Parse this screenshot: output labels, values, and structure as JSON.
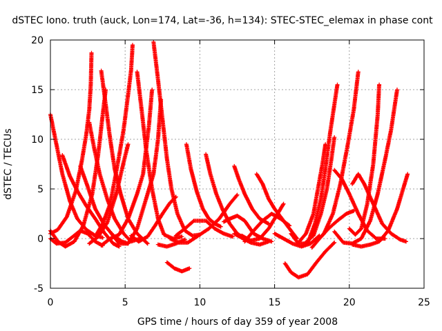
{
  "chart_data": {
    "type": "scatter",
    "title": "dSTEC Iono. truth (auck, Lon=174, Lat=-36, h=134): STEC-STEC_elemax in phase cont",
    "xlabel": "GPS time / hours of day 359 of year 2008",
    "ylabel": "dSTEC  / TECUs",
    "xlim": [
      0,
      25
    ],
    "ylim": [
      -5,
      20
    ],
    "xticks": [
      0,
      5,
      10,
      15,
      20,
      25
    ],
    "yticks": [
      -5,
      0,
      5,
      10,
      15,
      20
    ],
    "grid": true,
    "marker": "plus",
    "color": "#ff0000",
    "arcs": [
      {
        "points": [
          [
            0.0,
            12.5
          ],
          [
            0.4,
            9.5
          ],
          [
            0.8,
            6.5
          ],
          [
            1.3,
            3.8
          ],
          [
            1.8,
            2.0
          ],
          [
            2.4,
            0.9
          ],
          [
            3.0,
            0.3
          ],
          [
            3.5,
            0.1
          ]
        ]
      },
      {
        "points": [
          [
            0.0,
            0.5
          ],
          [
            0.5,
            0.9
          ],
          [
            1.1,
            2.2
          ],
          [
            1.7,
            4.8
          ],
          [
            2.1,
            7.8
          ],
          [
            2.4,
            10.5
          ],
          [
            2.6,
            13.0
          ],
          [
            2.7,
            15.5
          ],
          [
            2.75,
            18.7
          ]
        ]
      },
      {
        "points": [
          [
            0.0,
            0.8
          ],
          [
            0.5,
            -0.3
          ],
          [
            1.0,
            -0.8
          ],
          [
            1.6,
            -0.3
          ],
          [
            2.2,
            1.3
          ],
          [
            2.8,
            4.5
          ],
          [
            3.2,
            8.5
          ],
          [
            3.5,
            12.5
          ],
          [
            3.7,
            15.0
          ]
        ]
      },
      {
        "points": [
          [
            0.0,
            0.0
          ],
          [
            0.4,
            -0.5
          ],
          [
            1.0,
            -0.4
          ],
          [
            1.5,
            0.2
          ],
          [
            2.0,
            0.8
          ],
          [
            2.5,
            0.5
          ],
          [
            3.0,
            -0.3
          ],
          [
            3.5,
            -0.7
          ]
        ]
      },
      {
        "points": [
          [
            0.8,
            8.4
          ],
          [
            1.3,
            6.3
          ],
          [
            1.8,
            4.8
          ],
          [
            2.4,
            3.3
          ],
          [
            3.0,
            2.0
          ],
          [
            3.6,
            0.6
          ],
          [
            4.2,
            -0.5
          ],
          [
            4.6,
            -0.8
          ]
        ]
      },
      {
        "points": [
          [
            2.6,
            11.7
          ],
          [
            2.9,
            9.3
          ],
          [
            3.3,
            6.5
          ],
          [
            3.8,
            4.0
          ],
          [
            4.3,
            2.0
          ],
          [
            4.9,
            0.5
          ],
          [
            5.4,
            -0.3
          ],
          [
            6.0,
            0.0
          ]
        ]
      },
      {
        "points": [
          [
            3.4,
            16.9
          ],
          [
            3.7,
            13.5
          ],
          [
            4.0,
            10.0
          ],
          [
            4.3,
            7.0
          ],
          [
            4.7,
            4.5
          ],
          [
            5.2,
            2.0
          ],
          [
            5.8,
            0.5
          ],
          [
            6.5,
            -0.5
          ]
        ]
      },
      {
        "points": [
          [
            2.0,
            7.3
          ],
          [
            2.5,
            5.2
          ],
          [
            3.0,
            3.0
          ],
          [
            3.6,
            1.4
          ],
          [
            4.2,
            0.3
          ],
          [
            4.8,
            -0.3
          ],
          [
            5.2,
            -0.5
          ]
        ]
      },
      {
        "points": [
          [
            3.0,
            0.2
          ],
          [
            3.5,
            1.5
          ],
          [
            4.0,
            3.5
          ],
          [
            4.5,
            7.5
          ],
          [
            4.9,
            11.0
          ],
          [
            5.2,
            14.5
          ],
          [
            5.4,
            17.0
          ],
          [
            5.5,
            19.5
          ]
        ]
      },
      {
        "points": [
          [
            2.6,
            -0.5
          ],
          [
            3.2,
            0.2
          ],
          [
            3.8,
            1.6
          ],
          [
            4.4,
            4.5
          ],
          [
            4.9,
            7.7
          ],
          [
            5.2,
            9.5
          ]
        ]
      },
      {
        "points": [
          [
            3.4,
            -0.7
          ],
          [
            4.0,
            0.0
          ],
          [
            4.6,
            0.4
          ],
          [
            5.2,
            2.0
          ],
          [
            5.8,
            4.5
          ],
          [
            6.2,
            6.5
          ],
          [
            6.6,
            11.5
          ],
          [
            6.8,
            15.0
          ]
        ]
      },
      {
        "points": [
          [
            4.1,
            0.5
          ],
          [
            4.6,
            -0.5
          ],
          [
            5.2,
            -0.5
          ],
          [
            5.8,
            1.0
          ],
          [
            6.3,
            3.5
          ],
          [
            6.9,
            6.5
          ],
          [
            7.2,
            10.0
          ],
          [
            7.4,
            14.0
          ]
        ]
      },
      {
        "points": [
          [
            5.8,
            16.8
          ],
          [
            6.1,
            13.0
          ],
          [
            6.4,
            9.0
          ],
          [
            6.8,
            5.0
          ],
          [
            7.2,
            2.0
          ],
          [
            7.6,
            0.4
          ],
          [
            8.2,
            0.0
          ],
          [
            8.8,
            0.2
          ]
        ]
      },
      {
        "points": [
          [
            6.9,
            19.8
          ],
          [
            7.2,
            16.0
          ],
          [
            7.5,
            12.0
          ],
          [
            7.8,
            8.0
          ],
          [
            8.1,
            5.0
          ],
          [
            8.5,
            2.5
          ],
          [
            9.0,
            0.8
          ],
          [
            9.5,
            0.3
          ],
          [
            10.0,
            0.4
          ]
        ]
      },
      {
        "points": [
          [
            5.4,
            0.3
          ],
          [
            5.9,
            -0.3
          ],
          [
            6.5,
            0.2
          ],
          [
            7.0,
            1.3
          ],
          [
            7.5,
            2.5
          ],
          [
            8.0,
            3.6
          ],
          [
            8.4,
            4.2
          ]
        ]
      },
      {
        "points": [
          [
            7.2,
            -0.6
          ],
          [
            7.8,
            -0.8
          ],
          [
            8.4,
            -0.5
          ],
          [
            9.0,
            -0.1
          ]
        ]
      },
      {
        "points": [
          [
            7.8,
            -2.4
          ],
          [
            8.3,
            -3.0
          ],
          [
            8.8,
            -3.3
          ],
          [
            9.3,
            -3.0
          ]
        ]
      },
      {
        "points": [
          [
            9.1,
            9.5
          ],
          [
            9.4,
            7.0
          ],
          [
            9.8,
            4.7
          ],
          [
            10.2,
            3.0
          ],
          [
            10.6,
            2.0
          ],
          [
            11.0,
            1.5
          ],
          [
            11.4,
            1.2
          ]
        ]
      },
      {
        "points": [
          [
            10.4,
            8.5
          ],
          [
            10.7,
            6.5
          ],
          [
            11.1,
            4.5
          ],
          [
            11.5,
            3.0
          ],
          [
            12.0,
            1.5
          ],
          [
            12.5,
            0.5
          ],
          [
            13.0,
            0.0
          ]
        ]
      },
      {
        "points": [
          [
            8.4,
            0.3
          ],
          [
            9.0,
            1.0
          ],
          [
            9.6,
            1.8
          ],
          [
            10.4,
            1.8
          ],
          [
            11.0,
            1.0
          ],
          [
            11.6,
            0.5
          ],
          [
            12.2,
            0.2
          ]
        ]
      },
      {
        "points": [
          [
            8.0,
            0.0
          ],
          [
            8.6,
            -0.4
          ],
          [
            9.2,
            -0.4
          ],
          [
            9.8,
            0.2
          ],
          [
            10.6,
            1.0
          ],
          [
            11.3,
            2.0
          ],
          [
            12.0,
            3.5
          ],
          [
            12.5,
            4.4
          ]
        ]
      },
      {
        "points": [
          [
            11.6,
            1.7
          ],
          [
            12.0,
            2.0
          ],
          [
            12.5,
            2.3
          ],
          [
            13.0,
            1.8
          ],
          [
            13.6,
            0.5
          ],
          [
            14.2,
            0.0
          ],
          [
            14.8,
            -0.3
          ]
        ]
      },
      {
        "points": [
          [
            12.3,
            0.5
          ],
          [
            12.9,
            0.0
          ],
          [
            13.4,
            -0.4
          ],
          [
            14.0,
            -0.6
          ],
          [
            14.6,
            -0.3
          ]
        ]
      },
      {
        "points": [
          [
            12.3,
            7.3
          ],
          [
            12.6,
            6.0
          ],
          [
            13.0,
            4.5
          ],
          [
            13.5,
            3.0
          ],
          [
            14.0,
            2.0
          ],
          [
            14.6,
            1.5
          ]
        ]
      },
      {
        "points": [
          [
            13.0,
            -0.3
          ],
          [
            13.6,
            0.8
          ],
          [
            14.2,
            1.8
          ],
          [
            14.8,
            2.5
          ],
          [
            15.4,
            2.0
          ],
          [
            16.0,
            1.3
          ]
        ]
      },
      {
        "points": [
          [
            13.8,
            6.5
          ],
          [
            14.2,
            5.5
          ],
          [
            14.6,
            4.0
          ],
          [
            15.0,
            3.0
          ],
          [
            15.5,
            2.0
          ],
          [
            16.0,
            1.0
          ],
          [
            16.5,
            0.0
          ]
        ]
      },
      {
        "points": [
          [
            12.8,
            0.3
          ],
          [
            13.4,
            -0.2
          ],
          [
            14.0,
            0.0
          ],
          [
            14.6,
            1.0
          ],
          [
            15.2,
            2.5
          ],
          [
            15.6,
            3.5
          ]
        ]
      },
      {
        "points": [
          [
            15.0,
            0.5
          ],
          [
            15.6,
            0.0
          ],
          [
            16.2,
            -0.5
          ],
          [
            16.8,
            -0.8
          ],
          [
            17.4,
            -0.5
          ],
          [
            18.0,
            0.3
          ]
        ]
      },
      {
        "points": [
          [
            15.7,
            -2.5
          ],
          [
            16.1,
            -3.4
          ],
          [
            16.6,
            -3.9
          ],
          [
            17.2,
            -3.6
          ],
          [
            17.8,
            -2.4
          ],
          [
            18.4,
            -1.3
          ],
          [
            19.0,
            -0.4
          ]
        ]
      },
      {
        "points": [
          [
            16.1,
            0.5
          ],
          [
            16.6,
            -0.5
          ],
          [
            17.2,
            -0.5
          ],
          [
            17.7,
            1.5
          ],
          [
            18.1,
            4.0
          ],
          [
            18.4,
            7.0
          ],
          [
            18.7,
            10.5
          ],
          [
            19.0,
            13.5
          ],
          [
            19.2,
            15.5
          ]
        ]
      },
      {
        "points": [
          [
            16.6,
            -0.4
          ],
          [
            17.1,
            0.5
          ],
          [
            17.6,
            2.5
          ],
          [
            17.9,
            5.0
          ],
          [
            18.2,
            7.5
          ],
          [
            18.4,
            9.5
          ]
        ]
      },
      {
        "points": [
          [
            17.0,
            -0.5
          ],
          [
            17.6,
            0.3
          ],
          [
            18.1,
            2.5
          ],
          [
            18.5,
            5.0
          ],
          [
            18.8,
            8.0
          ],
          [
            19.0,
            10.2
          ]
        ]
      },
      {
        "points": [
          [
            17.8,
            -0.3
          ],
          [
            18.3,
            0.5
          ],
          [
            18.9,
            2.5
          ],
          [
            19.4,
            5.5
          ],
          [
            19.9,
            9.5
          ],
          [
            20.3,
            13.0
          ],
          [
            20.6,
            16.8
          ]
        ]
      },
      {
        "points": [
          [
            17.5,
            -0.9
          ],
          [
            18.0,
            0.0
          ],
          [
            18.6,
            1.0
          ],
          [
            19.2,
            1.8
          ],
          [
            19.8,
            2.5
          ],
          [
            20.3,
            2.8
          ]
        ]
      },
      {
        "points": [
          [
            19.0,
            6.9
          ],
          [
            19.5,
            6.0
          ],
          [
            20.0,
            4.5
          ],
          [
            20.6,
            2.5
          ],
          [
            21.2,
            0.8
          ],
          [
            21.8,
            0.0
          ],
          [
            22.4,
            0.0
          ]
        ]
      },
      {
        "points": [
          [
            19.0,
            0.7
          ],
          [
            19.6,
            -0.4
          ],
          [
            20.2,
            -0.5
          ],
          [
            20.8,
            0.0
          ],
          [
            21.4,
            1.8
          ],
          [
            21.9,
            4.5
          ],
          [
            22.4,
            8.0
          ],
          [
            22.8,
            11.0
          ],
          [
            23.2,
            15.0
          ]
        ]
      },
      {
        "points": [
          [
            20.0,
            1.0
          ],
          [
            20.4,
            0.4
          ],
          [
            20.8,
            1.0
          ],
          [
            21.2,
            3.5
          ],
          [
            21.6,
            7.5
          ],
          [
            21.9,
            12.5
          ],
          [
            22.0,
            15.5
          ]
        ]
      },
      {
        "points": [
          [
            20.2,
            5.5
          ],
          [
            20.6,
            6.5
          ],
          [
            21.0,
            5.5
          ],
          [
            21.6,
            3.5
          ],
          [
            22.2,
            1.5
          ],
          [
            22.8,
            0.5
          ],
          [
            23.4,
            -0.1
          ],
          [
            23.8,
            -0.3
          ]
        ]
      },
      {
        "points": [
          [
            20.2,
            -0.6
          ],
          [
            20.8,
            -0.8
          ],
          [
            21.4,
            -0.6
          ],
          [
            22.0,
            -0.3
          ],
          [
            22.6,
            0.8
          ],
          [
            23.2,
            3.0
          ],
          [
            23.6,
            5.0
          ],
          [
            23.9,
            6.5
          ]
        ]
      }
    ]
  }
}
